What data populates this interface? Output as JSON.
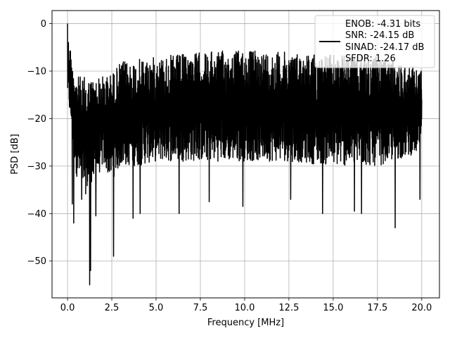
{
  "chart_data": {
    "type": "line",
    "xlabel": "Frequency [MHz]",
    "ylabel": "PSD [dB]",
    "xlim": [
      -0.875,
      21.0
    ],
    "ylim": [
      -57.75,
      2.75
    ],
    "xticks": [
      0.0,
      2.5,
      5.0,
      7.5,
      10.0,
      12.5,
      15.0,
      17.5,
      20.0
    ],
    "xtick_labels": [
      "0.0",
      "2.5",
      "5.0",
      "7.5",
      "10.0",
      "12.5",
      "15.0",
      "17.5",
      "20.0"
    ],
    "yticks": [
      0,
      -10,
      -20,
      -30,
      -40,
      -50
    ],
    "ytick_labels": [
      "0",
      "−10",
      "−20",
      "−30",
      "−40",
      "−50"
    ],
    "grid": true,
    "legend_position": "top-right",
    "legend": [
      "ENOB: -4.31 bits",
      "SNR: -24.15 dB",
      "SINAD: -24.17 dB",
      "SFDR: 1.26"
    ],
    "series": [
      {
        "color": "#000000",
        "x_range": [
          0.0,
          20.0
        ],
        "envelope_note_values": {
          "peak": 0.0,
          "peak_x": 0.0,
          "upper": [
            [
              0.0,
              -2.0
            ],
            [
              0.5,
              -11.0
            ],
            [
              1.5,
              -11.5
            ],
            [
              2.5,
              -10.5
            ],
            [
              3.0,
              -8.0
            ],
            [
              4.0,
              -7.5
            ],
            [
              5.0,
              -7.0
            ],
            [
              7.5,
              -6.0
            ],
            [
              10.0,
              -5.5
            ],
            [
              12.5,
              -6.0
            ],
            [
              15.0,
              -6.5
            ],
            [
              17.5,
              -7.0
            ],
            [
              20.0,
              -9.5
            ]
          ],
          "lower": [
            [
              0.0,
              -15.0
            ],
            [
              0.5,
              -32.0
            ],
            [
              1.0,
              -36.0
            ],
            [
              1.5,
              -34.0
            ],
            [
              2.0,
              -30.0
            ],
            [
              2.5,
              -33.0
            ],
            [
              3.0,
              -30.0
            ],
            [
              4.0,
              -30.0
            ],
            [
              5.0,
              -29.0
            ],
            [
              7.5,
              -29.0
            ],
            [
              10.0,
              -29.0
            ],
            [
              12.5,
              -29.0
            ],
            [
              15.0,
              -30.0
            ],
            [
              17.5,
              -30.0
            ],
            [
              20.0,
              -27.0
            ]
          ],
          "deep_minima": [
            [
              0.27,
              -38.0
            ],
            [
              0.35,
              -42.0
            ],
            [
              0.8,
              -37.0
            ],
            [
              1.25,
              -55.0
            ],
            [
              1.3,
              -52.0
            ],
            [
              1.6,
              -40.5
            ],
            [
              2.6,
              -49.0
            ],
            [
              3.7,
              -41.0
            ],
            [
              4.1,
              -40.0
            ],
            [
              6.3,
              -40.0
            ],
            [
              8.0,
              -37.5
            ],
            [
              9.9,
              -38.5
            ],
            [
              12.6,
              -37.0
            ],
            [
              14.4,
              -40.0
            ],
            [
              16.2,
              -39.5
            ],
            [
              16.6,
              -40.0
            ],
            [
              18.5,
              -43.0
            ],
            [
              19.9,
              -37.0
            ]
          ]
        }
      }
    ]
  }
}
